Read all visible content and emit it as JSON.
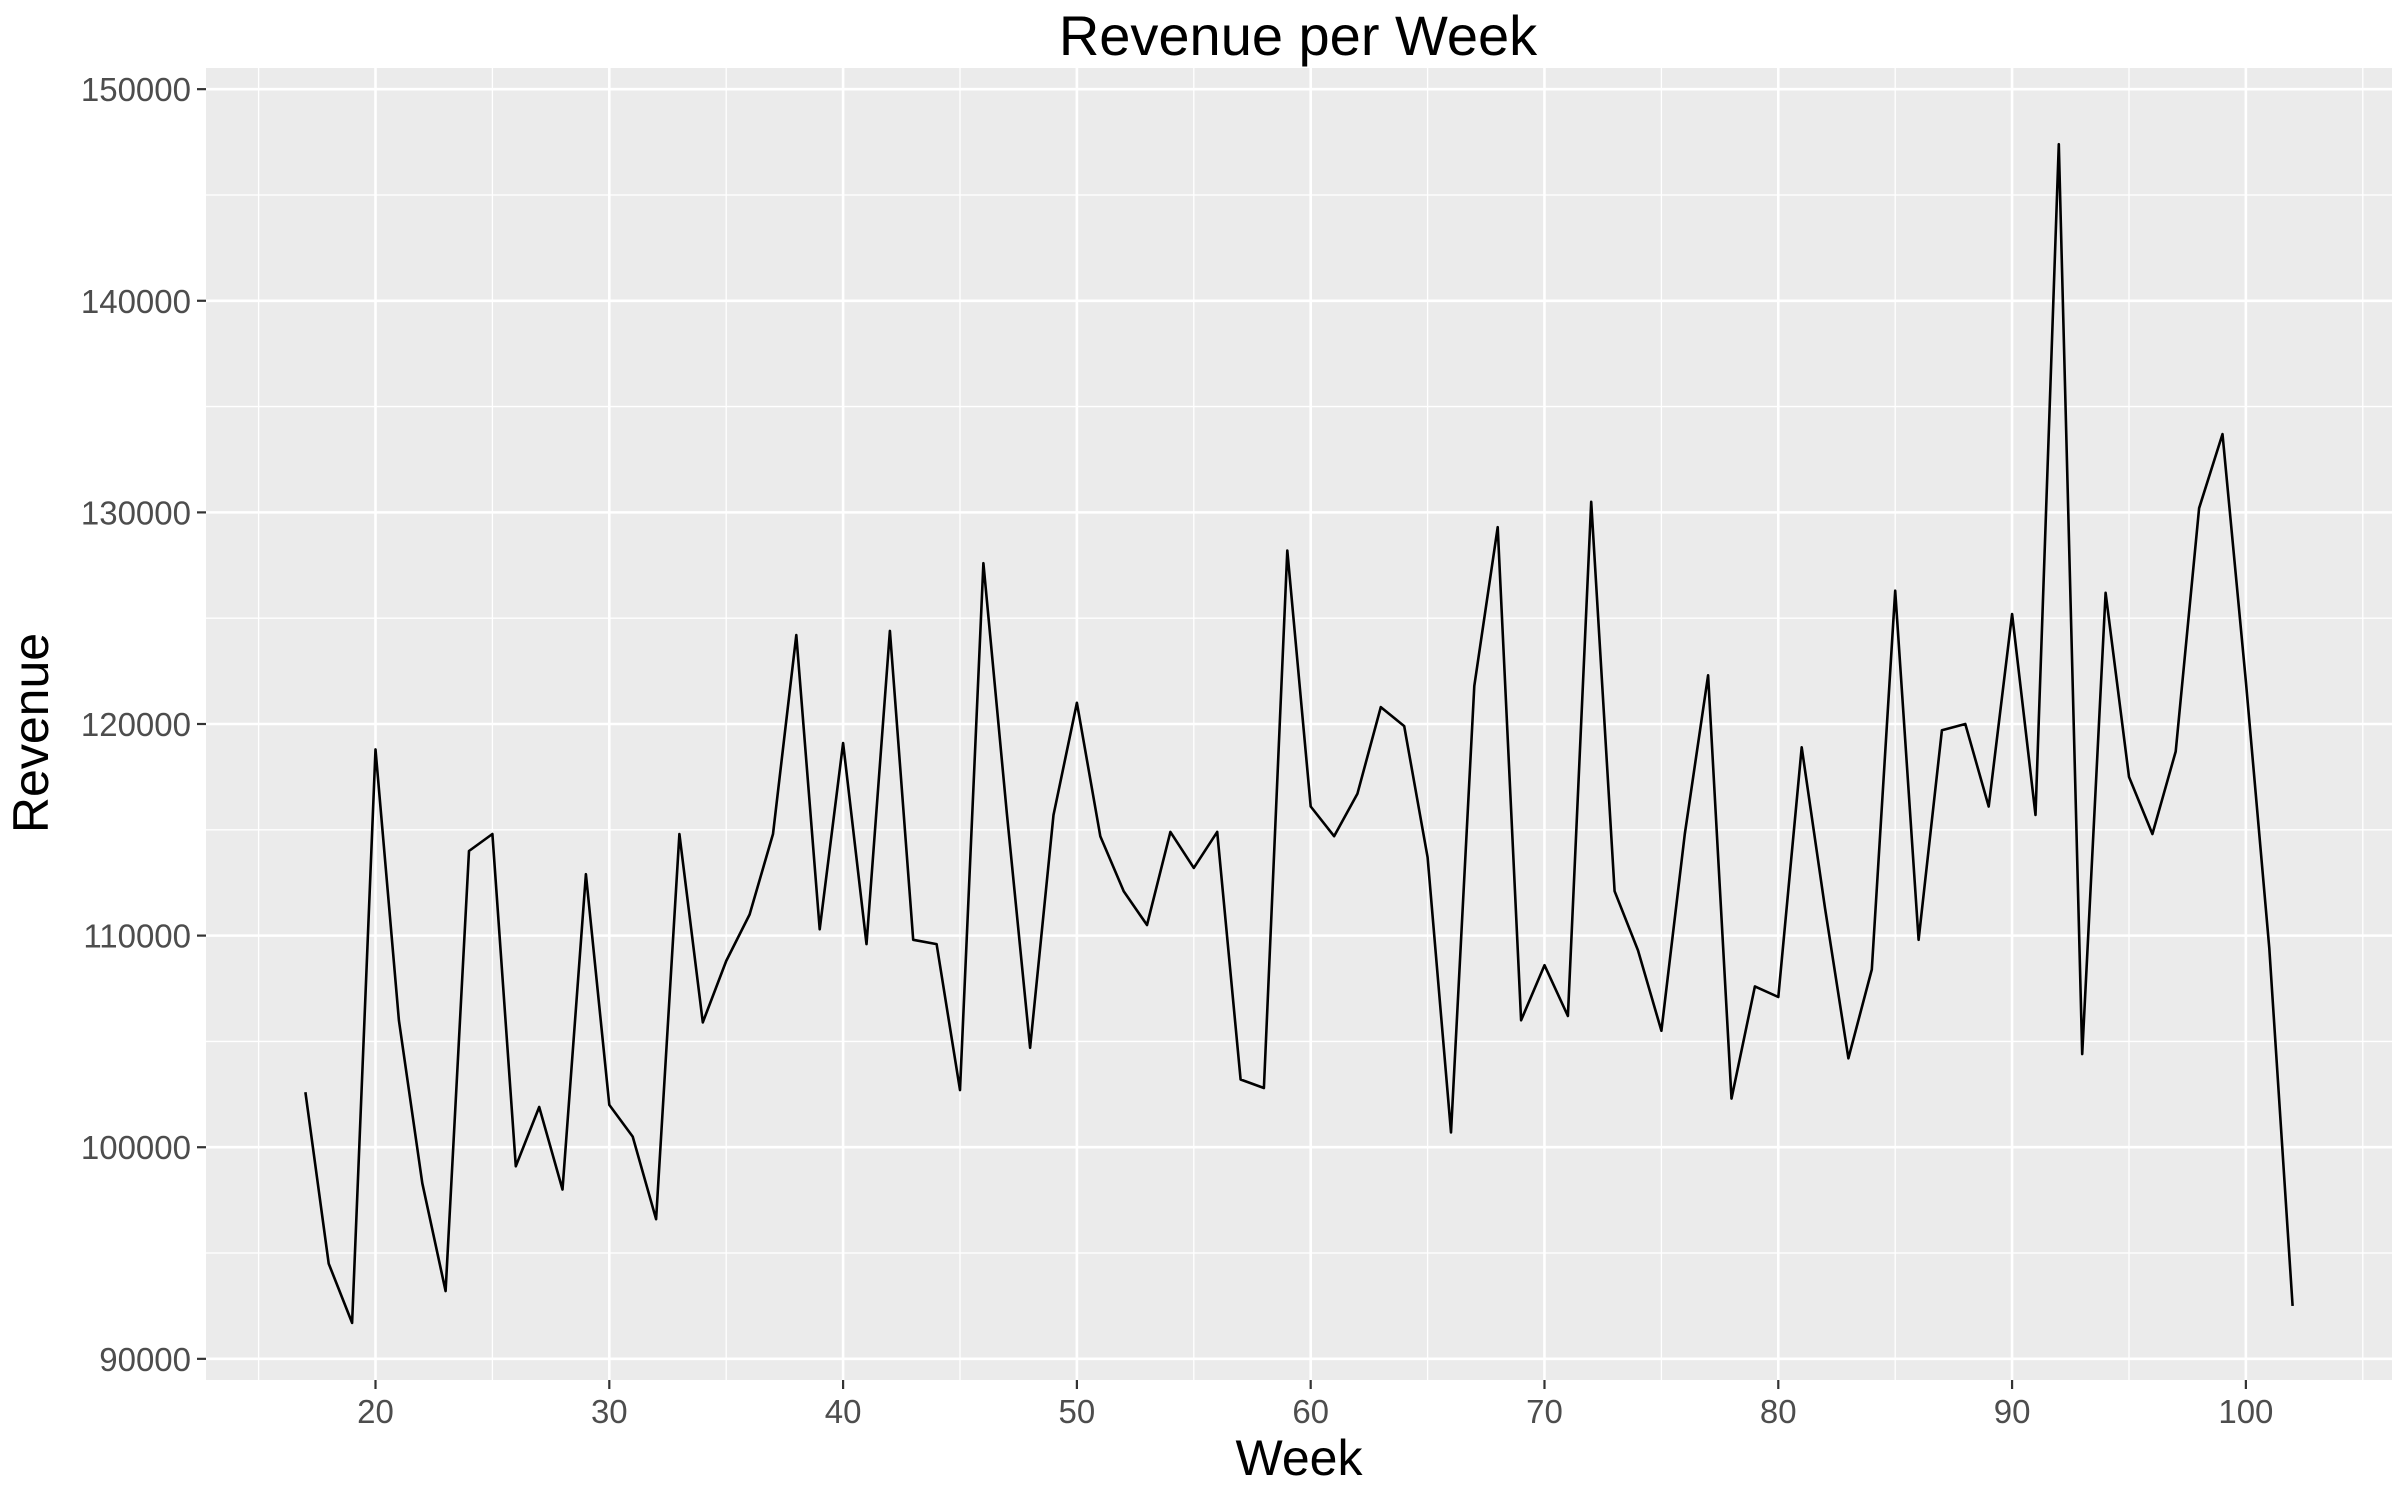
{
  "chart_data": {
    "type": "line",
    "title": "Revenue per Week",
    "xlabel": "Week",
    "ylabel": "Revenue",
    "xlim": [
      12.75,
      106.25
    ],
    "ylim": [
      89000,
      151000
    ],
    "x_ticks": [
      20,
      30,
      40,
      50,
      60,
      70,
      80,
      90,
      100
    ],
    "y_ticks": [
      90000,
      100000,
      110000,
      120000,
      130000,
      140000,
      150000
    ],
    "grid": true,
    "legend": "none",
    "colors": {
      "panel": "#ebebeb",
      "grid": "#ffffff",
      "line": "#000000"
    },
    "series": [
      {
        "x": [
          17,
          18,
          19,
          20,
          21,
          22,
          23,
          24,
          25,
          26,
          27,
          28,
          29,
          30,
          31,
          32,
          33,
          34,
          35,
          36,
          37,
          38,
          39,
          40,
          41,
          42,
          43,
          44,
          45,
          46,
          47,
          48,
          49,
          50,
          51,
          52,
          53,
          54,
          55,
          56,
          57,
          58,
          59,
          60,
          61,
          62,
          63,
          64,
          65,
          66,
          67,
          68,
          69,
          70,
          71,
          72,
          73,
          74,
          75,
          76,
          77,
          78,
          79,
          80,
          81,
          82,
          83,
          84,
          85,
          86,
          87,
          88,
          89,
          90,
          91,
          92,
          93,
          94,
          95,
          96,
          97,
          98,
          99,
          100,
          101,
          102
        ],
        "values": [
          102600,
          94500,
          91700,
          118800,
          106000,
          98300,
          93200,
          114000,
          114800,
          99100,
          101900,
          98000,
          112900,
          102000,
          100500,
          96600,
          114800,
          105900,
          108800,
          111000,
          114800,
          124200,
          110300,
          119100,
          109600,
          124400,
          109800,
          109600,
          102700,
          127600,
          115800,
          104700,
          115700,
          121000,
          114700,
          112100,
          110500,
          114900,
          113200,
          114900,
          103200,
          102800,
          128200,
          116100,
          114700,
          116700,
          120800,
          119900,
          113700,
          100700,
          121800,
          129300,
          106000,
          108600,
          106200,
          130500,
          112100,
          109300,
          105500,
          114800,
          122300,
          102300,
          107600,
          107100,
          118900,
          111300,
          104200,
          108400,
          126300,
          109800,
          119700,
          120000,
          116100,
          125200,
          115700,
          147400,
          104400,
          126200,
          117500,
          114800,
          118700,
          130200,
          133700,
          122000,
          109400,
          92500
        ]
      }
    ]
  }
}
